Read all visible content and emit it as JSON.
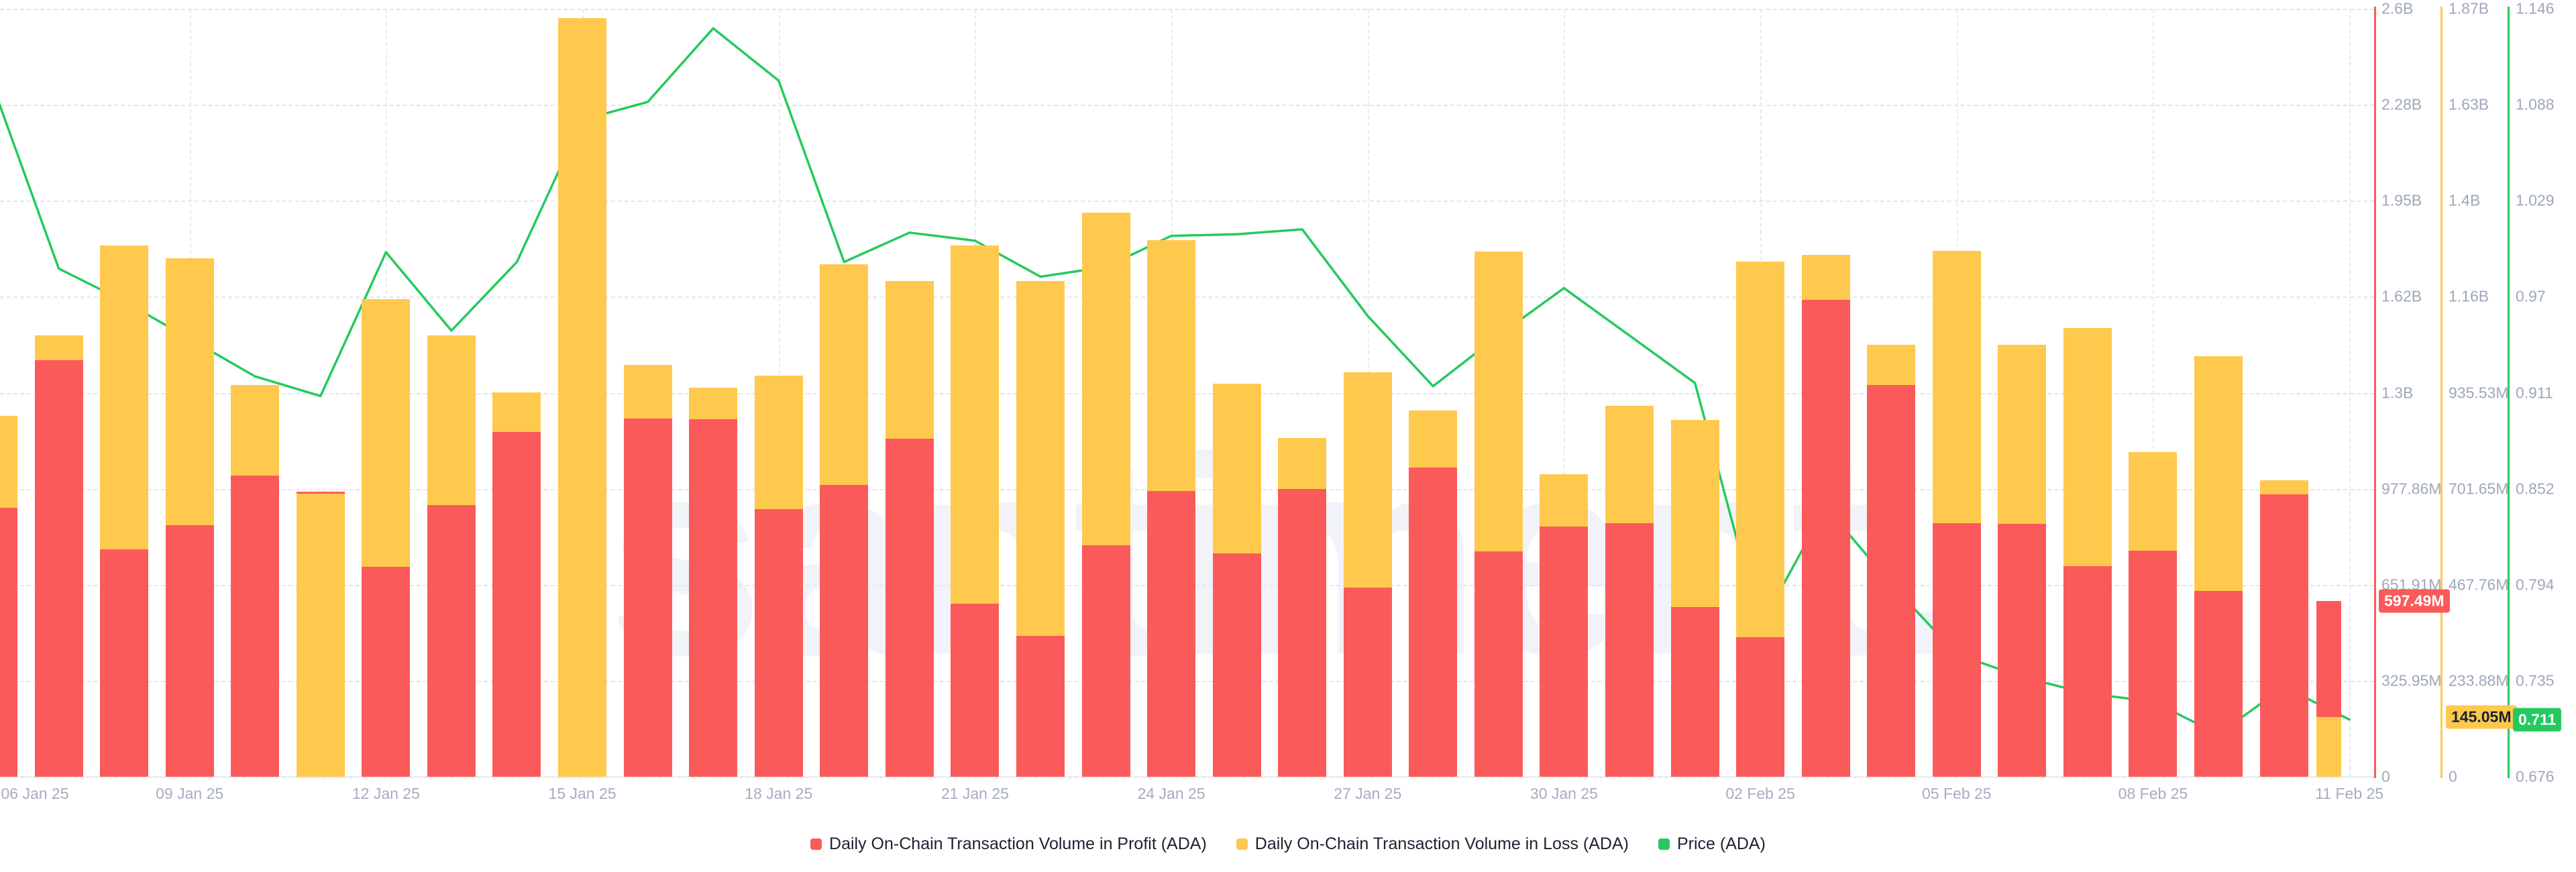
{
  "watermark": "santiment.",
  "legend": [
    {
      "label": "Daily On-Chain Transaction Volume in Profit (ADA)",
      "color": "#fb5a5a"
    },
    {
      "label": "Daily On-Chain Transaction Volume in Loss (ADA)",
      "color": "#ffc94d"
    },
    {
      "label": "Price (ADA)",
      "color": "#26c95f"
    }
  ],
  "badges": {
    "profit": "597.49M",
    "loss": "145.05M",
    "price": "0.711"
  },
  "axes": {
    "profit": {
      "color": "#fb5a5a",
      "max_m": 2607.62,
      "labels": [
        "2.6B",
        "2.28B",
        "1.95B",
        "1.62B",
        "1.3B",
        "977.86M",
        "651.91M",
        "325.95M",
        "0"
      ]
    },
    "loss": {
      "color": "#ffc94d",
      "max_m": 1871.04,
      "labels": [
        "1.87B",
        "1.63B",
        "1.4B",
        "1.16B",
        "935.53M",
        "701.65M",
        "467.76M",
        "233.88M",
        "0"
      ]
    },
    "price": {
      "color": "#26c95f",
      "min": 0.676,
      "max": 1.146,
      "labels": [
        "1.146",
        "1.088",
        "1.029",
        "0.97",
        "0.911",
        "0.852",
        "0.794",
        "0.735",
        "0.676"
      ]
    }
  },
  "chart_data": {
    "type": "bar",
    "title": "",
    "x_start": "06 Jan 25",
    "x_end": "11 Feb 25",
    "tick_labels": [
      "06 Jan 25",
      "09 Jan 25",
      "12 Jan 25",
      "15 Jan 25",
      "18 Jan 25",
      "21 Jan 25",
      "24 Jan 25",
      "27 Jan 25",
      "30 Jan 25",
      "02 Feb 25",
      "05 Feb 25",
      "08 Feb 25",
      "11 Feb 25"
    ],
    "tick_every_days": 3,
    "grid": true,
    "legend_position": "bottom",
    "series": [
      {
        "name": "Daily On-Chain Transaction Volume in Profit (ADA)",
        "type": "bar",
        "axis": "profit",
        "unit": "M ADA",
        "values": [
          913,
          1415,
          772,
          854,
          1022,
          968,
          713,
          922,
          1170,
          0,
          1217,
          1213,
          908,
          990,
          1147,
          588,
          479,
          786,
          970,
          758,
          976,
          643,
          1051,
          765,
          849,
          861,
          576,
          474,
          1619,
          1329,
          861,
          858,
          715,
          767,
          631,
          959,
          597.49
        ]
      },
      {
        "name": "Daily On-Chain Transaction Volume in Loss (ADA)",
        "type": "bar",
        "axis": "loss",
        "unit": "M ADA",
        "values": [
          879,
          1075,
          1294,
          1263,
          955,
          689,
          1164,
          1076,
          937,
          1849,
          1003,
          947,
          977,
          1249,
          1207,
          1295,
          1207,
          1375,
          1308,
          957,
          825,
          985,
          893,
          1280,
          737,
          903,
          869,
          1255,
          1271,
          1053,
          1281,
          1052,
          1093,
          791,
          1024,
          722,
          145.05
        ]
      },
      {
        "name": "Price (ADA)",
        "type": "line",
        "axis": "price",
        "unit": "USD",
        "values": [
          1.098,
          0.987,
          0.967,
          0.944,
          0.921,
          0.909,
          0.997,
          0.949,
          0.991,
          1.078,
          1.089,
          1.134,
          1.102,
          0.991,
          1.009,
          1.004,
          0.982,
          0.988,
          1.007,
          1.008,
          1.011,
          0.958,
          0.915,
          0.946,
          0.975,
          0.946,
          0.917,
          0.768,
          0.841,
          0.794,
          0.751,
          0.737,
          0.727,
          0.722,
          0.702,
          0.731,
          0.711
        ]
      }
    ],
    "last_values": {
      "profit_m": 597.49,
      "loss_m": 145.05,
      "price": 0.711
    }
  }
}
